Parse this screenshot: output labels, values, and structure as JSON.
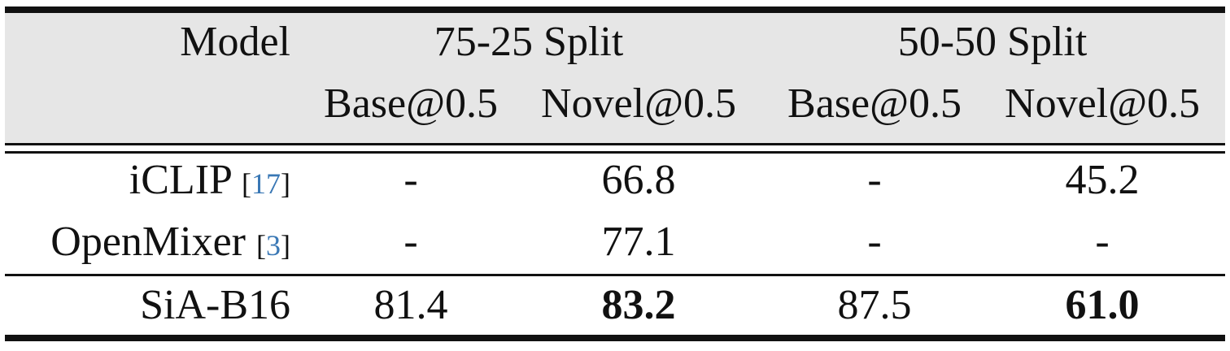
{
  "table": {
    "header": {
      "model_label": "Model",
      "group_1": "75-25 Split",
      "group_2": "50-50 Split",
      "sub_headers": [
        "Base@0.5",
        "Novel@0.5",
        "Base@0.5",
        "Novel@0.5"
      ]
    },
    "rows": [
      {
        "model": "iCLIP",
        "cite": "17",
        "values": [
          "-",
          "66.8",
          "-",
          "45.2"
        ]
      },
      {
        "model": "OpenMixer",
        "cite": "3",
        "values": [
          "-",
          "77.1",
          "-",
          "-"
        ]
      },
      {
        "model": "SiA-B16",
        "cite": "",
        "values": [
          "81.4",
          "83.2",
          "87.5",
          "61.0"
        ]
      }
    ]
  }
}
